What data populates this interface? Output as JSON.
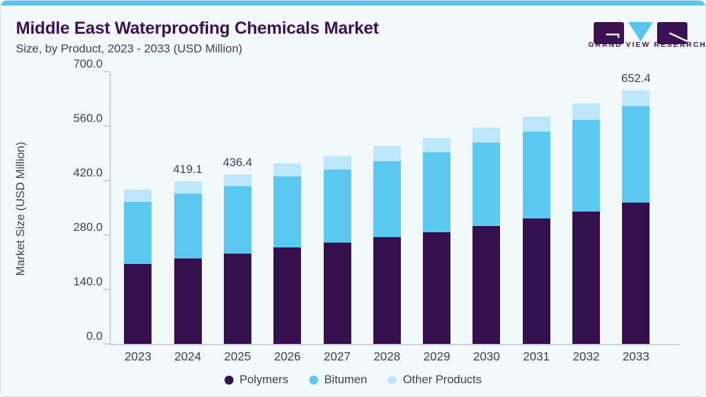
{
  "header": {
    "title": "Middle East Waterproofing Chemicals Market",
    "subtitle": "Size, by Product, 2023 - 2033 (USD Million)"
  },
  "logo": {
    "brand_text": "GRAND VIEW RESEARCH"
  },
  "colors": {
    "top_bar": "#58C5EF",
    "title_text": "#3D1254",
    "body_text": "#3F4050",
    "axis_line": "#C9D2DA",
    "card_background": "#F3F8FB",
    "polymers": "#36104D",
    "bitumen": "#5AC8F0",
    "other_products": "#BCE7F8",
    "logo_purple": "#3D1254",
    "logo_blue": "#58C5EF"
  },
  "chart_data": {
    "type": "bar",
    "stacked": true,
    "title": "Middle East Waterproofing Chemicals Market Size, by Product, 2023 - 2033 (USD Million)",
    "xlabel": "",
    "ylabel": "Market Size (USD Million)",
    "ylim": [
      0,
      700
    ],
    "yticks": [
      0,
      140,
      280,
      420,
      560,
      700
    ],
    "ytick_labels": [
      "0.0",
      "140.0",
      "280.0",
      "420.0",
      "560.0",
      "700.0"
    ],
    "grid": false,
    "legend_position": "bottom",
    "categories": [
      "2023",
      "2024",
      "2025",
      "2026",
      "2027",
      "2028",
      "2029",
      "2030",
      "2031",
      "2032",
      "2033"
    ],
    "series": [
      {
        "name": "Polymers",
        "color_key": "polymers",
        "values": [
          204.8,
          219.8,
          231.8,
          248.0,
          260.1,
          273.9,
          287.6,
          302.8,
          323.1,
          341.1,
          364.0
        ]
      },
      {
        "name": "Bitumen",
        "color_key": "bitumen",
        "values": [
          160.2,
          166.3,
          174.9,
          181.8,
          189.0,
          196.3,
          205.2,
          214.1,
          221.9,
          235.3,
          246.6
        ]
      },
      {
        "name": "Other Products",
        "color_key": "other_products",
        "values": [
          31.4,
          33.0,
          29.7,
          34.2,
          34.7,
          37.8,
          37.3,
          39.7,
          39.6,
          41.9,
          41.8
        ]
      }
    ],
    "total_labels": {
      "2024": "419.1",
      "2025": "436.4",
      "2033": "652.4"
    }
  }
}
